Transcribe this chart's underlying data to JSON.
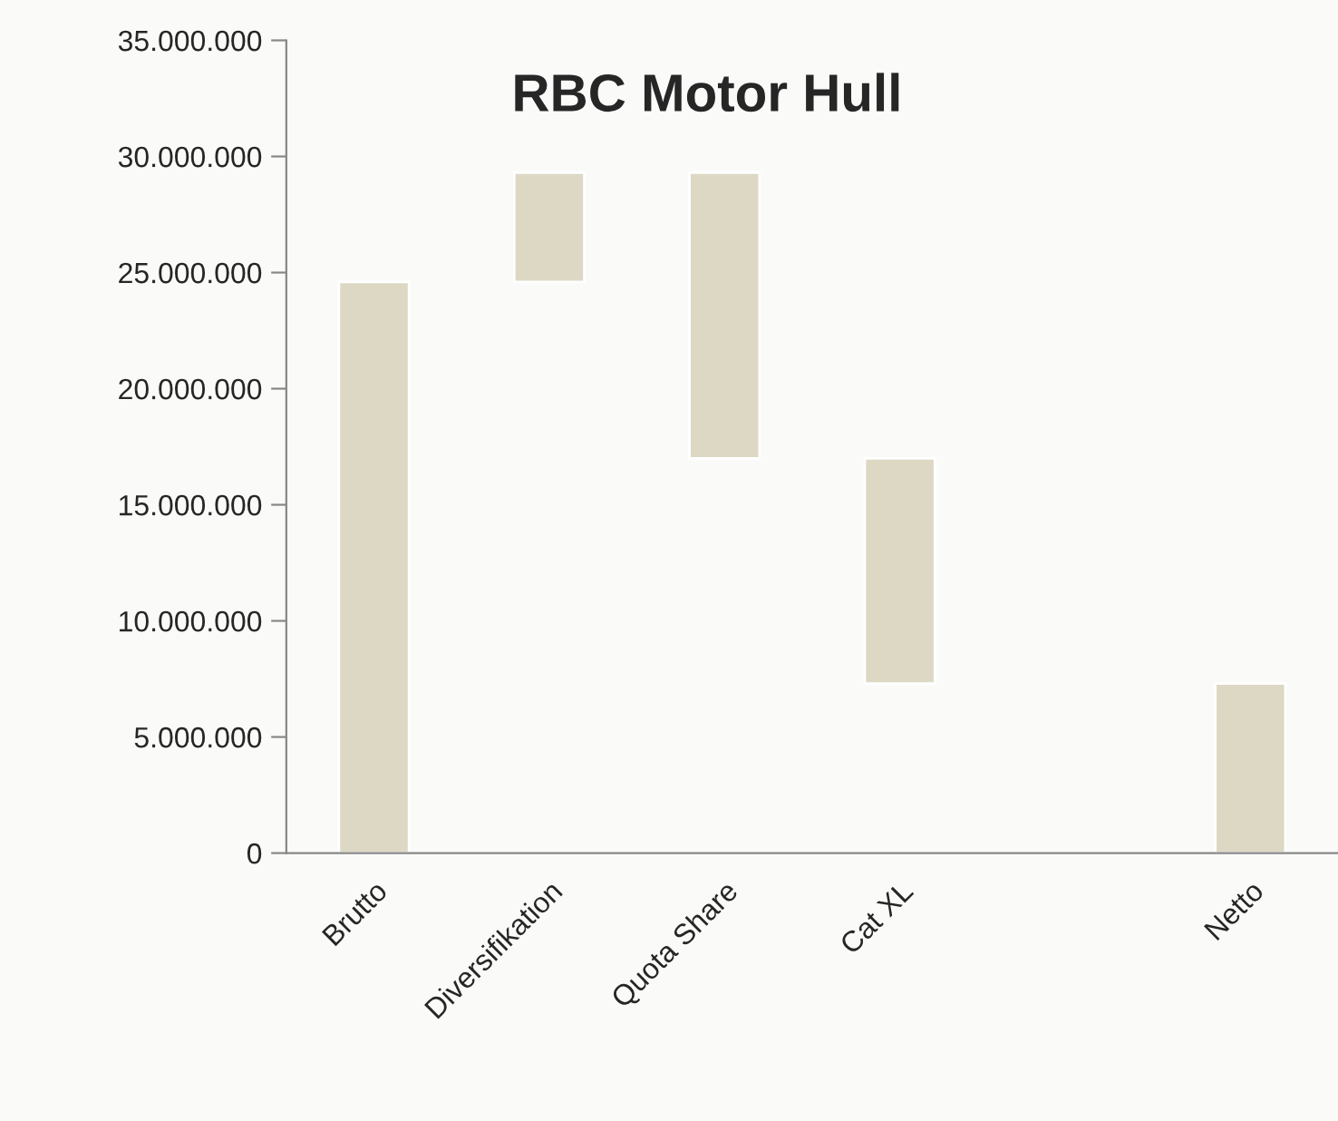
{
  "chart_data": {
    "type": "bar",
    "title": "RBC Motor Hull",
    "categories": [
      "Brutto",
      "Diversifikation",
      "Quota Share",
      "Cat XL",
      null,
      "Netto"
    ],
    "values": [
      24600000,
      4700000,
      12300000,
      9700000,
      null,
      7300000
    ],
    "base": [
      0,
      24600000,
      17000000,
      7300000,
      null,
      0
    ],
    "color": "#ddd8c4",
    "ylim": [
      0,
      35000000
    ],
    "yticks": [
      {
        "value": 0,
        "label": "0"
      },
      {
        "value": 5000000,
        "label": "5.000.000"
      },
      {
        "value": 10000000,
        "label": "10.000.000"
      },
      {
        "value": 15000000,
        "label": "15.000.000"
      },
      {
        "value": 20000000,
        "label": "20.000.000"
      },
      {
        "value": 25000000,
        "label": "25.000.000"
      },
      {
        "value": 30000000,
        "label": "30.000.000"
      },
      {
        "value": 35000000,
        "label": "35.000.000"
      }
    ],
    "grid": false,
    "legend": false
  }
}
